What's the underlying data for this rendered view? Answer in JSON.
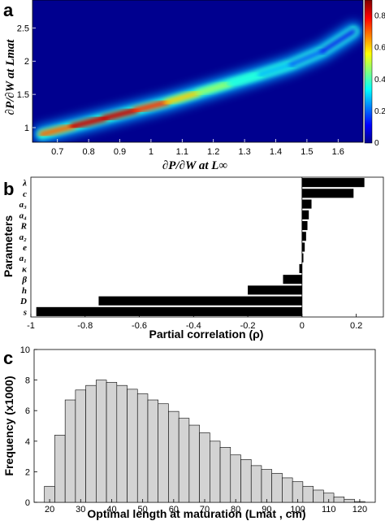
{
  "panels": {
    "a": "a",
    "b": "b",
    "c": "c"
  },
  "chart_data": [
    {
      "type": "heatmap",
      "panel": "a",
      "xlabel": "∂P/∂W at L∞",
      "ylabel": "∂P/∂W at Lmat",
      "xlim": [
        0.62,
        1.68
      ],
      "ylim": [
        0.78,
        2.92
      ],
      "xticks": [
        "0.7",
        "0.8",
        "0.9",
        "1",
        "1.1",
        "1.2",
        "1.3",
        "1.4",
        "1.5",
        "1.6"
      ],
      "yticks": [
        "1",
        "1.5",
        "2",
        "2.5"
      ],
      "colorbar": {
        "range": [
          0,
          0.9
        ],
        "ticks": [
          "0",
          "0.2",
          "0.4",
          "0.6",
          "0.8"
        ]
      },
      "ridge": [
        {
          "x": 0.65,
          "y": 0.9,
          "density": 0.65
        },
        {
          "x": 0.75,
          "y": 1.02,
          "density": 0.9
        },
        {
          "x": 0.85,
          "y": 1.14,
          "density": 0.95
        },
        {
          "x": 0.95,
          "y": 1.26,
          "density": 0.9
        },
        {
          "x": 1.05,
          "y": 1.38,
          "density": 0.75
        },
        {
          "x": 1.15,
          "y": 1.52,
          "density": 0.6
        },
        {
          "x": 1.25,
          "y": 1.66,
          "density": 0.45
        },
        {
          "x": 1.35,
          "y": 1.8,
          "density": 0.35
        },
        {
          "x": 1.45,
          "y": 1.95,
          "density": 0.25
        },
        {
          "x": 1.55,
          "y": 2.15,
          "density": 0.15
        },
        {
          "x": 1.65,
          "y": 2.45,
          "density": 0.08
        }
      ]
    },
    {
      "type": "bar",
      "panel": "b",
      "orientation": "horizontal",
      "xlabel": "Partial correlation (ρ)",
      "ylabel": "Parameters",
      "xlim": [
        -1,
        0.3
      ],
      "xticks": [
        "-1",
        "-0.8",
        "-0.6",
        "-0.4",
        "-0.2",
        "0",
        "0.2"
      ],
      "categories": [
        "λ",
        "c",
        "a₃",
        "a₄",
        "R",
        "a₂",
        "e",
        "a₁",
        "κ",
        "β",
        "h",
        "D",
        "s"
      ],
      "values": [
        0.23,
        0.19,
        0.035,
        0.025,
        0.02,
        0.015,
        0.01,
        0.005,
        -0.01,
        -0.07,
        -0.2,
        -0.75,
        -0.98
      ]
    },
    {
      "type": "bar",
      "panel": "c",
      "subtype": "histogram",
      "xlabel": "Optimal length at maturation (Lmat , cm)",
      "ylabel": "Frequency (x1000)",
      "xlim": [
        15,
        125
      ],
      "ylim": [
        0,
        10
      ],
      "xticks": [
        "20",
        "30",
        "40",
        "50",
        "60",
        "70",
        "80",
        "90",
        "100",
        "110",
        "120"
      ],
      "yticks": [
        "0",
        "2",
        "4",
        "6",
        "8",
        "10"
      ],
      "bin_width": 3.333,
      "bin_start": 18.33,
      "values": [
        1.05,
        4.4,
        6.7,
        7.35,
        7.65,
        8.0,
        7.85,
        7.65,
        7.4,
        7.1,
        6.7,
        6.45,
        5.95,
        5.5,
        5.05,
        4.55,
        4.0,
        3.6,
        3.1,
        2.8,
        2.4,
        2.15,
        1.9,
        1.6,
        1.35,
        1.05,
        0.8,
        0.6,
        0.35,
        0.2,
        0.05
      ]
    }
  ]
}
